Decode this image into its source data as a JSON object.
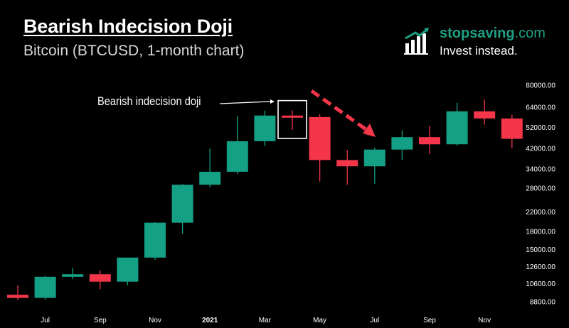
{
  "header": {
    "title": "Bearish Indecision Doji",
    "subtitle": "Bitcoin (BTCUSD, 1-month chart)"
  },
  "brand": {
    "name_main": "stopsaving",
    "name_suffix": ".com",
    "tagline": "Invest instead.",
    "logo_icon": "bar-chart-arrow-icon"
  },
  "annotation": {
    "label": "Bearish indecision doji"
  },
  "colors": {
    "background": "#000000",
    "bullish": "#14a085",
    "bearish": "#f5364a",
    "brand": "#1fa083",
    "highlight_box": "#ffffff"
  },
  "chart_data": {
    "type": "candlestick",
    "scale": "log",
    "ylim": [
      7800,
      95000
    ],
    "y_ticks": [
      {
        "label": "80000.00",
        "value": 80000
      },
      {
        "label": "64000.00",
        "value": 64000
      },
      {
        "label": "52000.00",
        "value": 52000
      },
      {
        "label": "42000.00",
        "value": 42000
      },
      {
        "label": "34000.00",
        "value": 34000
      },
      {
        "label": "28000.00",
        "value": 28000
      },
      {
        "label": "22000.00",
        "value": 22000
      },
      {
        "label": "18000.00",
        "value": 18000
      },
      {
        "label": "15000.00",
        "value": 15000
      },
      {
        "label": "12600.00",
        "value": 12600
      },
      {
        "label": "10600.00",
        "value": 10600
      },
      {
        "label": "8800.00",
        "value": 8800
      }
    ],
    "x_ticks": [
      {
        "label": "Jul",
        "index": 1,
        "bold": false
      },
      {
        "label": "Sep",
        "index": 3,
        "bold": false
      },
      {
        "label": "Nov",
        "index": 5,
        "bold": false
      },
      {
        "label": "2021",
        "index": 7,
        "bold": true
      },
      {
        "label": "Mar",
        "index": 9,
        "bold": false
      },
      {
        "label": "May",
        "index": 11,
        "bold": false
      },
      {
        "label": "Jul",
        "index": 13,
        "bold": false
      },
      {
        "label": "Sep",
        "index": 15,
        "bold": false
      },
      {
        "label": "Nov",
        "index": 17,
        "bold": false
      }
    ],
    "candles": [
      {
        "open": 9450,
        "high": 10400,
        "low": 8950,
        "close": 9150
      },
      {
        "open": 9150,
        "high": 11450,
        "low": 9000,
        "close": 11350
      },
      {
        "open": 11350,
        "high": 12450,
        "low": 11100,
        "close": 11650
      },
      {
        "open": 11650,
        "high": 12100,
        "low": 10000,
        "close": 10800
      },
      {
        "open": 10800,
        "high": 13800,
        "low": 10400,
        "close": 13800
      },
      {
        "open": 13800,
        "high": 19800,
        "low": 13500,
        "close": 19700
      },
      {
        "open": 19700,
        "high": 29200,
        "low": 17600,
        "close": 29000
      },
      {
        "open": 29000,
        "high": 41900,
        "low": 28300,
        "close": 33100
      },
      {
        "open": 33100,
        "high": 58300,
        "low": 32300,
        "close": 45200
      },
      {
        "open": 45200,
        "high": 61700,
        "low": 43000,
        "close": 58700
      },
      {
        "open": 58700,
        "high": 61800,
        "low": 50700,
        "close": 57800
      },
      {
        "open": 57800,
        "high": 59500,
        "low": 30000,
        "close": 37300
      },
      {
        "open": 37300,
        "high": 41300,
        "low": 29000,
        "close": 35000
      },
      {
        "open": 35000,
        "high": 42300,
        "low": 29300,
        "close": 41500
      },
      {
        "open": 41500,
        "high": 50500,
        "low": 37400,
        "close": 47100
      },
      {
        "open": 47100,
        "high": 52900,
        "low": 39600,
        "close": 43800
      },
      {
        "open": 43800,
        "high": 66900,
        "low": 43200,
        "close": 61300
      },
      {
        "open": 61300,
        "high": 69000,
        "low": 53500,
        "close": 57000
      },
      {
        "open": 57000,
        "high": 59200,
        "low": 42000,
        "close": 46300
      }
    ],
    "highlight_index": 10
  }
}
